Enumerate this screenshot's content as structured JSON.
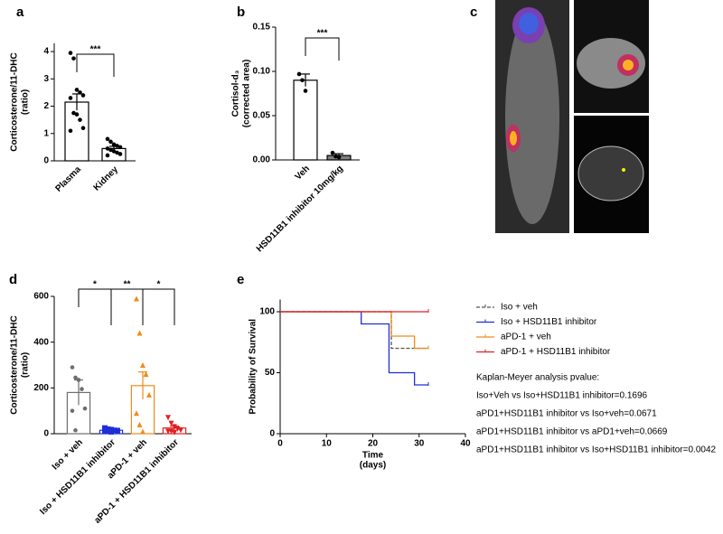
{
  "chart_data": [
    {
      "type": "bar-dot",
      "panel": "a",
      "ylabel": [
        "Corticosterone/11-DHC",
        "(ratio)"
      ],
      "categories": [
        "Plasma",
        "Kidney"
      ],
      "values": [
        2.15,
        0.45
      ],
      "errors": [
        0.3,
        0.08
      ],
      "points": [
        [
          3.95,
          3.75,
          2.6,
          2.5,
          2.4,
          2.3,
          1.75,
          1.7,
          1.5,
          1.2,
          1.1
        ],
        [
          0.8,
          0.7,
          0.6,
          0.55,
          0.5,
          0.45,
          0.4,
          0.35,
          0.3,
          0.25,
          0.2
        ]
      ],
      "colors": [
        "#000000",
        "#000000"
      ],
      "fills": [
        "#ffffff",
        "#ffffff"
      ],
      "markers": [
        "circle",
        "circle"
      ],
      "significance": [
        "***"
      ],
      "ylim": [
        0,
        4.3
      ],
      "yticks": [
        0,
        1,
        2,
        3,
        4
      ]
    },
    {
      "type": "bar-dot",
      "panel": "b",
      "ylabel": [
        "Cortisol-d₃",
        "(corrected area)"
      ],
      "categories": [
        "Veh",
        "HSD11B1 inhibitor 10mg/kg"
      ],
      "values": [
        0.09,
        0.005
      ],
      "errors": [
        0.007,
        0.002
      ],
      "points": [
        [
          0.097,
          0.09,
          0.078
        ],
        [
          0.008,
          0.004,
          0.003
        ]
      ],
      "colors": [
        "#000000",
        "#000000"
      ],
      "fills": [
        "#ffffff",
        "#808080"
      ],
      "markers": [
        "circle",
        "circle"
      ],
      "significance": [
        "***"
      ],
      "ylim": [
        0,
        0.15
      ],
      "yticks": [
        {
          "value": 0,
          "label": "0.00"
        },
        {
          "value": 0.05,
          "label": "0.05"
        },
        {
          "value": 0.1,
          "label": "0.10"
        },
        {
          "value": 0.15,
          "label": "0.15"
        }
      ]
    },
    {
      "type": "image",
      "panel": "c"
    },
    {
      "type": "bar-dot",
      "panel": "d",
      "ylabel": [
        "Corticosterone/11-DHC",
        "(ratio)"
      ],
      "categories": [
        "Iso + veh",
        "Iso + HSD11B1 inhibitor",
        "aPD-1 + veh",
        "aPD-1 + HSD11B1 inhibitor"
      ],
      "values": [
        180,
        15,
        210,
        25
      ],
      "errors": [
        55,
        4,
        60,
        8
      ],
      "points": [
        [
          290,
          245,
          235,
          195,
          110,
          100,
          15
        ],
        [
          25,
          20,
          18,
          15,
          14,
          12,
          10,
          8
        ],
        [
          590,
          440,
          300,
          260,
          170,
          90,
          40,
          10
        ],
        [
          70,
          45,
          30,
          20,
          15,
          10,
          10,
          5
        ]
      ],
      "colors": [
        "#6e6e6e",
        "#1f2fd6",
        "#f08a1c",
        "#e02020"
      ],
      "fills": [
        "#ffffff",
        "#ffffff",
        "#ffffff",
        "#ffffff"
      ],
      "markers": [
        "circle",
        "square",
        "triangle",
        "triangle-down"
      ],
      "significance": [
        "*",
        "**",
        "*"
      ],
      "ylim": [
        0,
        600
      ],
      "yticks": [
        0,
        200,
        400,
        600
      ]
    },
    {
      "type": "survival",
      "panel": "e",
      "ylabel": [
        "Probability of Survival"
      ],
      "xlabel": [
        "Time",
        "(days)"
      ],
      "series": [
        {
          "name": "Iso + veh",
          "color": "#555555",
          "linestyle": "dashed",
          "x": [
            0,
            24,
            32
          ],
          "values": [
            100,
            70,
            70
          ]
        },
        {
          "name": "Iso + HSD11B1 inhibitor",
          "color": "#1f2fd6",
          "linestyle": "solid",
          "x": [
            0,
            17.5,
            23.5,
            29,
            32
          ],
          "values": [
            100,
            90,
            50,
            40,
            40
          ]
        },
        {
          "name": "aPD-1 + veh",
          "color": "#f08a1c",
          "linestyle": "solid",
          "x": [
            0,
            24,
            29,
            32
          ],
          "values": [
            100,
            80,
            70,
            70
          ]
        },
        {
          "name": "aPD-1 + HSD11B1 inhibitor",
          "color": "#e02020",
          "linestyle": "solid",
          "x": [
            0,
            32
          ],
          "values": [
            100,
            100
          ]
        }
      ],
      "annotations": [
        "Kaplan-Meyer analysis pvalue:",
        "Iso+Veh vs Iso+HSD11B1 inhibitor=0.1696",
        "aPD1+HSD11B1 inhibitor vs Iso+veh=0.0671",
        "aPD1+HSD11B1 inhibitor vs aPD1+veh=0.0669",
        "aPD1+HSD11B1 inhibitor vs Iso+HSD11B1 inhibitor=0.0042"
      ],
      "xlim": [
        0,
        40
      ],
      "xticks": [
        0,
        10,
        20,
        30,
        40
      ],
      "ylim": [
        0,
        110
      ],
      "yticks": [
        0,
        50,
        100
      ]
    }
  ]
}
